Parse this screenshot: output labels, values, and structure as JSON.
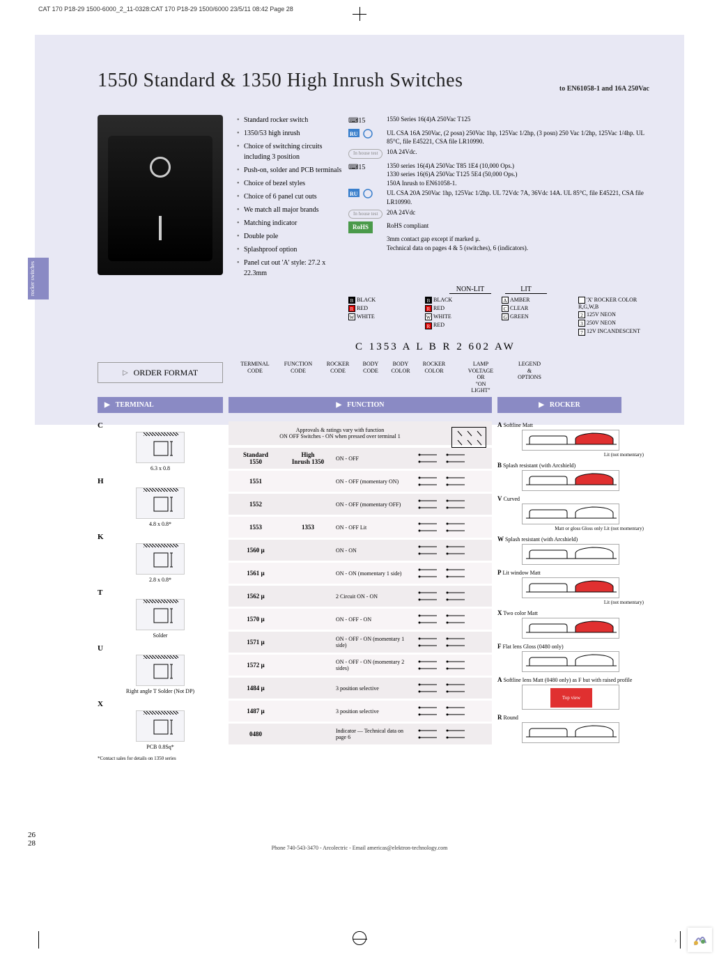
{
  "header_info": "CAT 170 P18-29 1500-6000_2_11-0328:CAT 170 P18-29 1500/6000  23/5/11  08:42  Page 28",
  "title": "1550 Standard & 1350 High Inrush Switches",
  "title_note": "to EN61058-1 and 16A 250Vac",
  "side_tab": "rocker switches",
  "features": [
    "Standard rocker switch",
    "1350/53 high inrush",
    "Choice of switching circuits including 3 position",
    "Push-on, solder and PCB terminals",
    "Choice of bezel styles",
    "Choice of 6 panel cut outs",
    "We match all major brands",
    "Matching indicator",
    "Double pole",
    "Splashproof option",
    "Panel cut out 'A' style: 27.2 x 22.3mm"
  ],
  "specs": {
    "line1": "1550 Series 16(4)A 250Vac T125",
    "line2": "UL CSA 16A 250Vac, (2 posn) 250Vac 1hp, 125Vac 1/2hp, (3 posn) 250 Vac 1/2hp, 125Vac 1/4hp. UL 85°C, file E45221, CSA file LR10990.",
    "line3": "10A 24Vdc.",
    "line4a": "1350 series 16(4)A 250Vac T85 1E4 (10,000 Ops.)",
    "line4b": "1330 series 16(6)A 250Vac T125 5E4 (50,000 Ops.)",
    "line4c": "150A Inrush to EN61058-1.",
    "line5": "UL CSA 20A 250Vac 1hp, 125Vac 1/2hp. UL 72Vdc 7A, 36Vdc 14A. UL 85°C, file E45221, CSA file LR10990.",
    "line6": "20A 24Vdc",
    "line7": "RoHS compliant",
    "line8": "3mm contact gap except if marked µ.",
    "line9": "Technical data on pages 4 & 5 (switches), 6 (indicators).",
    "badge": "In house test",
    "rohs": "RoHS"
  },
  "nonlit": "NON-LIT",
  "lit": "LIT",
  "colors": {
    "nonlit1": [
      {
        "c": "B",
        "n": "BLACK"
      },
      {
        "c": "R",
        "n": "RED"
      },
      {
        "c": "W",
        "n": "WHITE"
      }
    ],
    "nonlit2": [
      {
        "c": "B",
        "n": "BLACK"
      },
      {
        "c": "R",
        "n": "RED"
      },
      {
        "c": "W",
        "n": "WHITE"
      },
      {
        "c": "R",
        "n": "RED"
      }
    ],
    "lit1": [
      {
        "c": "A",
        "n": "AMBER"
      },
      {
        "c": "C",
        "n": "CLEAR"
      },
      {
        "c": "G",
        "n": "GREEN"
      }
    ],
    "lit2": [
      {
        "c": " ",
        "n": "'X' ROCKER COLOR R,G,W,B"
      },
      {
        "c": "2",
        "n": "125V NEON"
      },
      {
        "c": "3",
        "n": "250V NEON"
      },
      {
        "c": "7",
        "n": "12V INCANDESCENT"
      }
    ]
  },
  "order_code": "C 1353 A L B R 2 602 AW",
  "order_labels": [
    "TERMINAL CODE",
    "FUNCTION CODE",
    "ROCKER CODE",
    "BODY CODE",
    "BODY COLOR",
    "ROCKER COLOR",
    "LAMP VOLTAGE OR \"ON LIGHT\"",
    "LEGEND & OPTIONS"
  ],
  "order_format": "ORDER FORMAT",
  "sections": {
    "terminal": "TERMINAL",
    "function": "FUNCTION",
    "rocker": "ROCKER"
  },
  "terminals": [
    {
      "code": "C",
      "label": "6.3 x 0.8"
    },
    {
      "code": "H",
      "label": "4.8 x 0.8*"
    },
    {
      "code": "K",
      "label": "2.8 x 0.8*"
    },
    {
      "code": "T",
      "label": "Solder"
    },
    {
      "code": "U",
      "label": "Right angle T Solder (Not DP)"
    },
    {
      "code": "X",
      "label": "PCB 0.8Sq*"
    }
  ],
  "terminal_footnote": "*Contact sales for details on 1350 series",
  "func_intro": "Approvals & ratings vary with function\nON OFF Switches - ON when pressed over terminal 1",
  "func_header": {
    "std": "Standard 1550",
    "hi": "High Inrush 1350"
  },
  "functions": [
    {
      "std": "1550",
      "hi": "1350",
      "desc": "ON - OFF",
      "alt": false,
      "header": true
    },
    {
      "std": "1551",
      "hi": "",
      "desc": "ON - OFF (momentary ON)",
      "alt": true
    },
    {
      "std": "1552",
      "hi": "",
      "desc": "ON - OFF (momentary OFF)",
      "alt": false
    },
    {
      "std": "1553",
      "hi": "1353",
      "desc": "ON - OFF Lit",
      "alt": true
    },
    {
      "std": "1560 µ",
      "hi": "",
      "desc": "ON - ON",
      "alt": false
    },
    {
      "std": "1561 µ",
      "hi": "",
      "desc": "ON - ON (momentary 1 side)",
      "alt": true
    },
    {
      "std": "1562 µ",
      "hi": "",
      "desc": "2 Circuit ON - ON",
      "alt": false
    },
    {
      "std": "1570 µ",
      "hi": "",
      "desc": "ON - OFF - ON",
      "alt": true
    },
    {
      "std": "1571 µ",
      "hi": "",
      "desc": "ON - OFF - ON (momentary 1 side)",
      "alt": false
    },
    {
      "std": "1572 µ",
      "hi": "",
      "desc": "ON - OFF - ON (momentary 2 sides)",
      "alt": true
    },
    {
      "std": "1484 µ",
      "hi": "",
      "desc": "3 position selective",
      "alt": false
    },
    {
      "std": "1487 µ",
      "hi": "",
      "desc": "3 position selective",
      "alt": true
    },
    {
      "std": "0480",
      "hi": "",
      "desc": "Indicator — Technical data on page 6",
      "alt": false
    }
  ],
  "rockers": [
    {
      "code": "A",
      "name": "Softline Matt",
      "note": "Lit (not momentary)"
    },
    {
      "code": "B",
      "name": "Splash resistant (with Arcshield)",
      "note": ""
    },
    {
      "code": "V",
      "name": "Curved",
      "note": "Matt or gloss    Gloss only Lit (not momentary)"
    },
    {
      "code": "W",
      "name": "Splash resistant (with Arcshield)",
      "note": ""
    },
    {
      "code": "P",
      "name": "Lit window Matt",
      "note": "Lit (not momentary)"
    },
    {
      "code": "X",
      "name": "Two color Matt",
      "note": ""
    },
    {
      "code": "F",
      "name": "Flat lens Gloss (0480 only)",
      "note": ""
    },
    {
      "code": "A",
      "name": "Softline lens Matt (0480 only) as F but with raised profile",
      "note": "Top view"
    },
    {
      "code": "R",
      "name": "Round",
      "note": ""
    }
  ],
  "page_num1": "26",
  "page_num2": "28",
  "footer": "Phone 740-543-3470 - Arcolectric - Email americas@elektron-technology.com"
}
